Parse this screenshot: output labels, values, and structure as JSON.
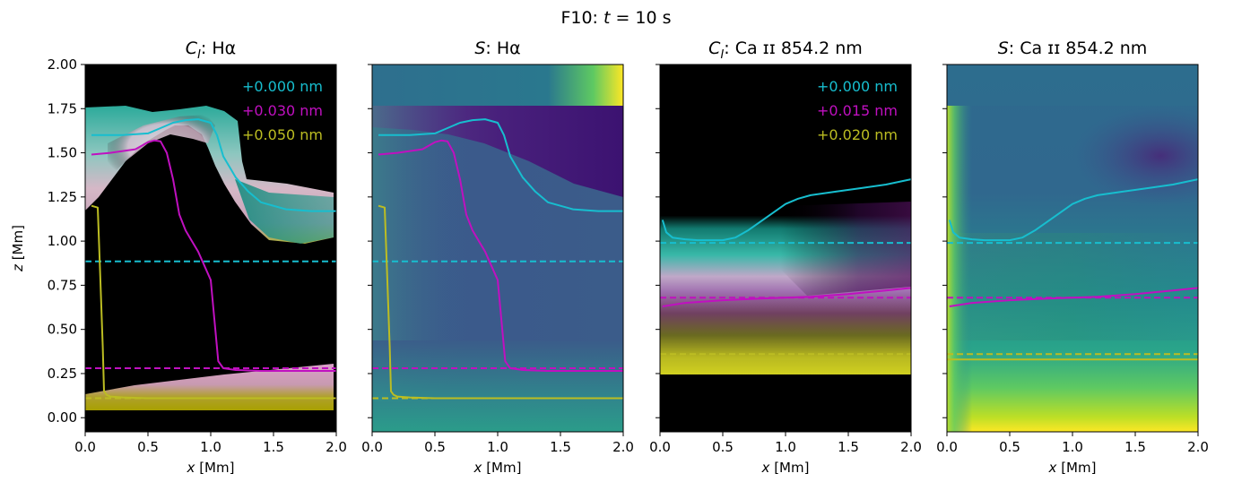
{
  "figure": {
    "suptitle": "F10: t = 10 s"
  },
  "chart_data": [
    {
      "type": "line",
      "title": "C_I: Hα",
      "title_main": "C",
      "title_sub": "I",
      "title_rest": ": Hα",
      "xlabel": "x [Mm]",
      "ylabel": "z [Mm]",
      "xlim": [
        0,
        2
      ],
      "ylim": [
        -0.08,
        2.0
      ],
      "background": "contribution function image (black background with cyan, magenta/pink and yellow emission)",
      "legend": [
        "+0.000 nm",
        "+0.030 nm",
        "+0.050 nm"
      ],
      "legend_placement": "top-right",
      "series": [
        {
          "name": "+0.000 nm",
          "color": "#17becf",
          "style": "solid",
          "x": [
            0.05,
            0.3,
            0.5,
            0.6,
            0.7,
            0.8,
            0.9,
            1.0,
            1.05,
            1.1,
            1.2,
            1.3,
            1.4,
            1.6,
            1.8,
            2.0
          ],
          "y": [
            1.6,
            1.6,
            1.61,
            1.64,
            1.67,
            1.685,
            1.69,
            1.67,
            1.6,
            1.48,
            1.36,
            1.28,
            1.22,
            1.18,
            1.17,
            1.17
          ]
        },
        {
          "name": "+0.000 nm",
          "color": "#17becf",
          "style": "dashed",
          "x": [
            0.0,
            2.0
          ],
          "y": [
            0.885,
            0.885
          ]
        },
        {
          "name": "+0.030 nm",
          "color": "#c010c0",
          "style": "solid",
          "x": [
            0.05,
            0.2,
            0.4,
            0.5,
            0.55,
            0.6,
            0.65,
            0.7,
            0.75,
            0.8,
            0.85,
            0.9,
            0.95,
            1.0,
            1.03,
            1.06,
            1.1,
            1.2,
            1.4,
            2.0
          ],
          "y": [
            1.49,
            1.5,
            1.52,
            1.56,
            1.57,
            1.565,
            1.5,
            1.35,
            1.15,
            1.06,
            1.0,
            0.94,
            0.86,
            0.78,
            0.55,
            0.32,
            0.28,
            0.27,
            0.265,
            0.265
          ]
        },
        {
          "name": "+0.030 nm",
          "color": "#c010c0",
          "style": "dashed",
          "x": [
            0.0,
            2.0
          ],
          "y": [
            0.28,
            0.28
          ]
        },
        {
          "name": "+0.050 nm",
          "color": "#bcbd22",
          "style": "solid",
          "x": [
            0.05,
            0.1,
            0.12,
            0.14,
            0.15,
            0.17,
            0.2,
            0.3,
            0.5,
            2.0
          ],
          "y": [
            1.2,
            1.19,
            0.8,
            0.4,
            0.15,
            0.13,
            0.12,
            0.115,
            0.11,
            0.11
          ]
        },
        {
          "name": "+0.050 nm",
          "color": "#bcbd22",
          "style": "dashed",
          "x": [
            0.0,
            2.0
          ],
          "y": [
            0.11,
            0.11
          ]
        }
      ],
      "xticks": [
        "0.0",
        "0.5",
        "1.0",
        "1.5",
        "2.0"
      ],
      "yticks": [
        "0.00",
        "0.25",
        "0.50",
        "0.75",
        "1.00",
        "1.25",
        "1.50",
        "1.75",
        "2.00"
      ]
    },
    {
      "type": "line",
      "title": "S: Hα",
      "title_main": "S",
      "title_sub": "",
      "title_rest": ": Hα",
      "xlabel": "x [Mm]",
      "ylabel": "",
      "xlim": [
        0,
        2
      ],
      "ylim": [
        -0.08,
        2.0
      ],
      "background": "source function image (viridis: teal, purple, yellow)",
      "legend": [],
      "series": [
        {
          "name": "+0.000 nm",
          "color": "#17becf",
          "style": "solid",
          "x": [
            0.05,
            0.3,
            0.5,
            0.6,
            0.7,
            0.8,
            0.9,
            1.0,
            1.05,
            1.1,
            1.2,
            1.3,
            1.4,
            1.6,
            1.8,
            2.0
          ],
          "y": [
            1.6,
            1.6,
            1.61,
            1.64,
            1.67,
            1.685,
            1.69,
            1.67,
            1.6,
            1.48,
            1.36,
            1.28,
            1.22,
            1.18,
            1.17,
            1.17
          ]
        },
        {
          "name": "+0.000 nm",
          "color": "#17becf",
          "style": "dashed",
          "x": [
            0.0,
            2.0
          ],
          "y": [
            0.885,
            0.885
          ]
        },
        {
          "name": "+0.030 nm",
          "color": "#c010c0",
          "style": "solid",
          "x": [
            0.05,
            0.2,
            0.4,
            0.5,
            0.55,
            0.6,
            0.65,
            0.7,
            0.75,
            0.8,
            0.85,
            0.9,
            0.95,
            1.0,
            1.03,
            1.06,
            1.1,
            1.2,
            1.4,
            2.0
          ],
          "y": [
            1.49,
            1.5,
            1.52,
            1.56,
            1.57,
            1.565,
            1.5,
            1.35,
            1.15,
            1.06,
            1.0,
            0.94,
            0.86,
            0.78,
            0.55,
            0.32,
            0.28,
            0.27,
            0.265,
            0.265
          ]
        },
        {
          "name": "+0.030 nm",
          "color": "#c010c0",
          "style": "dashed",
          "x": [
            0.0,
            2.0
          ],
          "y": [
            0.28,
            0.28
          ]
        },
        {
          "name": "+0.050 nm",
          "color": "#bcbd22",
          "style": "solid",
          "x": [
            0.05,
            0.1,
            0.12,
            0.14,
            0.15,
            0.17,
            0.2,
            0.3,
            0.5,
            2.0
          ],
          "y": [
            1.2,
            1.19,
            0.8,
            0.4,
            0.15,
            0.13,
            0.12,
            0.115,
            0.11,
            0.11
          ]
        },
        {
          "name": "+0.050 nm",
          "color": "#bcbd22",
          "style": "dashed",
          "x": [
            0.0,
            2.0
          ],
          "y": [
            0.11,
            0.11
          ]
        }
      ],
      "xticks": [
        "0.0",
        "0.5",
        "1.0",
        "1.5",
        "2.0"
      ],
      "yticks": []
    },
    {
      "type": "line",
      "title": "C_I: Ca II 854.2 nm",
      "title_main": "C",
      "title_sub": "I",
      "title_rest": ": Ca ɪɪ 854.2 nm",
      "xlabel": "x [Mm]",
      "ylabel": "",
      "xlim": [
        0,
        2
      ],
      "ylim": [
        -0.08,
        2.0
      ],
      "background": "contribution function image (black background with cyan, magenta and olive/yellow emission)",
      "legend": [
        "+0.000 nm",
        "+0.015 nm",
        "+0.020 nm"
      ],
      "legend_placement": "top-right",
      "series": [
        {
          "name": "+0.000 nm",
          "color": "#17becf",
          "style": "solid",
          "x": [
            0.02,
            0.05,
            0.1,
            0.2,
            0.3,
            0.5,
            0.6,
            0.7,
            0.8,
            0.9,
            1.0,
            1.1,
            1.2,
            1.4,
            1.6,
            1.8,
            2.0
          ],
          "y": [
            1.12,
            1.05,
            1.02,
            1.01,
            1.005,
            1.005,
            1.02,
            1.06,
            1.11,
            1.16,
            1.21,
            1.24,
            1.26,
            1.28,
            1.3,
            1.32,
            1.35
          ]
        },
        {
          "name": "+0.000 nm",
          "color": "#17becf",
          "style": "dashed",
          "x": [
            0.0,
            2.0
          ],
          "y": [
            0.99,
            0.99
          ]
        },
        {
          "name": "+0.015 nm",
          "color": "#c010c0",
          "style": "solid",
          "x": [
            0.02,
            0.2,
            0.5,
            0.8,
            1.0,
            1.2,
            1.5,
            1.8,
            2.0
          ],
          "y": [
            0.63,
            0.65,
            0.665,
            0.675,
            0.68,
            0.685,
            0.7,
            0.72,
            0.735
          ]
        },
        {
          "name": "+0.015 nm",
          "color": "#c010c0",
          "style": "dashed",
          "x": [
            0.0,
            2.0
          ],
          "y": [
            0.68,
            0.68
          ]
        },
        {
          "name": "+0.020 nm",
          "color": "#bcbd22",
          "style": "solid",
          "x": [
            0.0,
            2.0
          ],
          "y": [
            0.33,
            0.33
          ]
        },
        {
          "name": "+0.020 nm",
          "color": "#bcbd22",
          "style": "dashed",
          "x": [
            0.0,
            2.0
          ],
          "y": [
            0.36,
            0.36
          ]
        }
      ],
      "xticks": [
        "0.0",
        "0.5",
        "1.0",
        "1.5",
        "2.0"
      ],
      "yticks": []
    },
    {
      "type": "line",
      "title": "S: Ca II 854.2 nm",
      "title_main": "S",
      "title_sub": "",
      "title_rest": ": Ca ɪɪ 854.2 nm",
      "xlabel": "x [Mm]",
      "ylabel": "",
      "xlim": [
        0,
        2
      ],
      "ylim": [
        -0.08,
        2.0
      ],
      "background": "source function image (viridis: teal, purple, green, yellow)",
      "legend": [],
      "series": [
        {
          "name": "+0.000 nm",
          "color": "#17becf",
          "style": "solid",
          "x": [
            0.02,
            0.05,
            0.1,
            0.2,
            0.3,
            0.5,
            0.6,
            0.7,
            0.8,
            0.9,
            1.0,
            1.1,
            1.2,
            1.4,
            1.6,
            1.8,
            2.0
          ],
          "y": [
            1.12,
            1.05,
            1.02,
            1.01,
            1.005,
            1.005,
            1.02,
            1.06,
            1.11,
            1.16,
            1.21,
            1.24,
            1.26,
            1.28,
            1.3,
            1.32,
            1.35
          ]
        },
        {
          "name": "+0.000 nm",
          "color": "#17becf",
          "style": "dashed",
          "x": [
            0.0,
            2.0
          ],
          "y": [
            0.99,
            0.99
          ]
        },
        {
          "name": "+0.015 nm",
          "color": "#c010c0",
          "style": "solid",
          "x": [
            0.02,
            0.2,
            0.5,
            0.8,
            1.0,
            1.2,
            1.5,
            1.8,
            2.0
          ],
          "y": [
            0.63,
            0.65,
            0.665,
            0.675,
            0.68,
            0.685,
            0.7,
            0.72,
            0.735
          ]
        },
        {
          "name": "+0.015 nm",
          "color": "#c010c0",
          "style": "dashed",
          "x": [
            0.0,
            2.0
          ],
          "y": [
            0.68,
            0.68
          ]
        },
        {
          "name": "+0.020 nm",
          "color": "#bcbd22",
          "style": "solid",
          "x": [
            0.0,
            2.0
          ],
          "y": [
            0.33,
            0.33
          ]
        },
        {
          "name": "+0.020 nm",
          "color": "#bcbd22",
          "style": "dashed",
          "x": [
            0.0,
            2.0
          ],
          "y": [
            0.36,
            0.36
          ]
        }
      ],
      "xticks": [
        "0.0",
        "0.5",
        "1.0",
        "1.5",
        "2.0"
      ],
      "yticks": []
    }
  ]
}
